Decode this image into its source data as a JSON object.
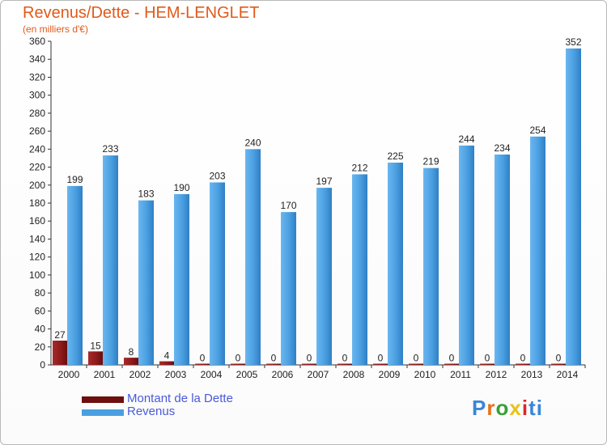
{
  "header": {
    "title": "Revenus/Dette - HEM-LENGLET",
    "subtitle": "(en milliers d'€)"
  },
  "legend": {
    "debt_label": "Montant de la Dette",
    "revenue_label": "Revenus"
  },
  "logo": {
    "text": "Proxiti",
    "letters": [
      "P",
      "r",
      "o",
      "x",
      "i",
      "ti"
    ]
  },
  "colors": {
    "title": "#e05a1a",
    "revenue_bar": "#4a9fe0",
    "debt_bar": "#8e1a1a",
    "legend_text": "#4a5ad8",
    "axis_text": "#222222"
  },
  "chart_data": {
    "type": "bar",
    "title": "Revenus/Dette - HEM-LENGLET",
    "ylabel": "(en milliers d'€)",
    "xlabel": "",
    "categories": [
      "2000",
      "2001",
      "2002",
      "2003",
      "2004",
      "2005",
      "2006",
      "2007",
      "2008",
      "2009",
      "2010",
      "2011",
      "2012",
      "2013",
      "2014"
    ],
    "series": [
      {
        "name": "Montant de la Dette",
        "values": [
          27,
          15,
          8,
          4,
          0,
          0,
          0,
          0,
          0,
          0,
          0,
          0,
          0,
          0,
          0
        ]
      },
      {
        "name": "Revenus",
        "values": [
          199,
          233,
          183,
          190,
          203,
          240,
          170,
          197,
          212,
          225,
          219,
          244,
          234,
          254,
          352
        ]
      }
    ],
    "ylim": [
      0,
      360
    ],
    "yticks": [
      0,
      20,
      40,
      60,
      80,
      100,
      120,
      140,
      160,
      180,
      200,
      220,
      240,
      260,
      280,
      300,
      320,
      340,
      360
    ],
    "grid": false,
    "legend_position": "bottom-left"
  }
}
